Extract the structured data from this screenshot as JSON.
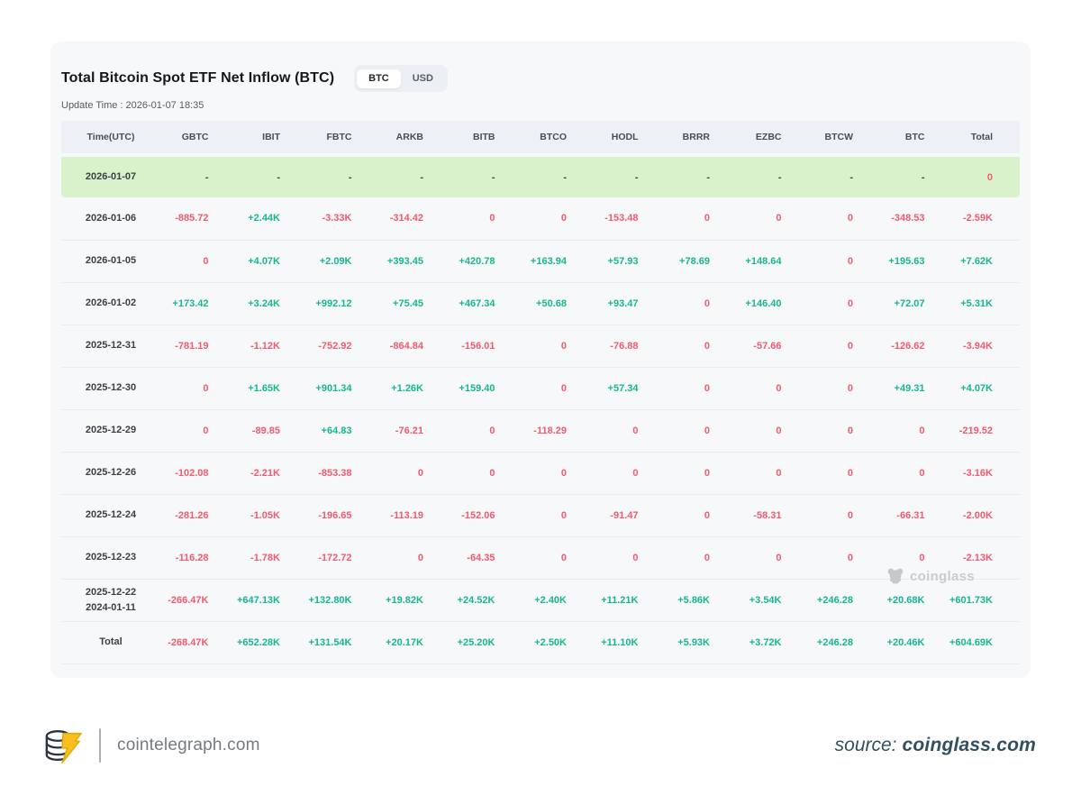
{
  "header": {
    "title": "Total Bitcoin Spot ETF Net Inflow (BTC)",
    "update_time": "Update Time : 2026-01-07 18:35",
    "toggle": {
      "options": [
        "BTC",
        "USD"
      ],
      "selected": "BTC"
    }
  },
  "table": {
    "columns": [
      "Time(UTC)",
      "GBTC",
      "IBIT",
      "FBTC",
      "ARKB",
      "BITB",
      "BTCO",
      "HODL",
      "BRRR",
      "EZBC",
      "BTCW",
      "BTC",
      "Total"
    ],
    "rows": [
      {
        "time": "2026-01-07",
        "highlight": true,
        "values": [
          {
            "t": "-",
            "c": "dash"
          },
          {
            "t": "-",
            "c": "dash"
          },
          {
            "t": "-",
            "c": "dash"
          },
          {
            "t": "-",
            "c": "dash"
          },
          {
            "t": "-",
            "c": "dash"
          },
          {
            "t": "-",
            "c": "dash"
          },
          {
            "t": "-",
            "c": "dash"
          },
          {
            "t": "-",
            "c": "dash"
          },
          {
            "t": "-",
            "c": "dash"
          },
          {
            "t": "-",
            "c": "dash"
          },
          {
            "t": "-",
            "c": "dash"
          },
          {
            "t": "0",
            "c": "neg"
          }
        ]
      },
      {
        "time": "2026-01-06",
        "highlight": false,
        "values": [
          {
            "t": "-885.72",
            "c": "neg"
          },
          {
            "t": "+2.44K",
            "c": "pos"
          },
          {
            "t": "-3.33K",
            "c": "neg"
          },
          {
            "t": "-314.42",
            "c": "neg"
          },
          {
            "t": "0",
            "c": "neg"
          },
          {
            "t": "0",
            "c": "neg"
          },
          {
            "t": "-153.48",
            "c": "neg"
          },
          {
            "t": "0",
            "c": "neg"
          },
          {
            "t": "0",
            "c": "neg"
          },
          {
            "t": "0",
            "c": "neg"
          },
          {
            "t": "-348.53",
            "c": "neg"
          },
          {
            "t": "-2.59K",
            "c": "neg"
          }
        ]
      },
      {
        "time": "2026-01-05",
        "highlight": false,
        "values": [
          {
            "t": "0",
            "c": "neg"
          },
          {
            "t": "+4.07K",
            "c": "pos"
          },
          {
            "t": "+2.09K",
            "c": "pos"
          },
          {
            "t": "+393.45",
            "c": "pos"
          },
          {
            "t": "+420.78",
            "c": "pos"
          },
          {
            "t": "+163.94",
            "c": "pos"
          },
          {
            "t": "+57.93",
            "c": "pos"
          },
          {
            "t": "+78.69",
            "c": "pos"
          },
          {
            "t": "+148.64",
            "c": "pos"
          },
          {
            "t": "0",
            "c": "neg"
          },
          {
            "t": "+195.63",
            "c": "pos"
          },
          {
            "t": "+7.62K",
            "c": "pos"
          }
        ]
      },
      {
        "time": "2026-01-02",
        "highlight": false,
        "values": [
          {
            "t": "+173.42",
            "c": "pos"
          },
          {
            "t": "+3.24K",
            "c": "pos"
          },
          {
            "t": "+992.12",
            "c": "pos"
          },
          {
            "t": "+75.45",
            "c": "pos"
          },
          {
            "t": "+467.34",
            "c": "pos"
          },
          {
            "t": "+50.68",
            "c": "pos"
          },
          {
            "t": "+93.47",
            "c": "pos"
          },
          {
            "t": "0",
            "c": "neg"
          },
          {
            "t": "+146.40",
            "c": "pos"
          },
          {
            "t": "0",
            "c": "neg"
          },
          {
            "t": "+72.07",
            "c": "pos"
          },
          {
            "t": "+5.31K",
            "c": "pos"
          }
        ]
      },
      {
        "time": "2025-12-31",
        "highlight": false,
        "values": [
          {
            "t": "-781.19",
            "c": "neg"
          },
          {
            "t": "-1.12K",
            "c": "neg"
          },
          {
            "t": "-752.92",
            "c": "neg"
          },
          {
            "t": "-864.84",
            "c": "neg"
          },
          {
            "t": "-156.01",
            "c": "neg"
          },
          {
            "t": "0",
            "c": "neg"
          },
          {
            "t": "-76.88",
            "c": "neg"
          },
          {
            "t": "0",
            "c": "neg"
          },
          {
            "t": "-57.66",
            "c": "neg"
          },
          {
            "t": "0",
            "c": "neg"
          },
          {
            "t": "-126.62",
            "c": "neg"
          },
          {
            "t": "-3.94K",
            "c": "neg"
          }
        ]
      },
      {
        "time": "2025-12-30",
        "highlight": false,
        "values": [
          {
            "t": "0",
            "c": "neg"
          },
          {
            "t": "+1.65K",
            "c": "pos"
          },
          {
            "t": "+901.34",
            "c": "pos"
          },
          {
            "t": "+1.26K",
            "c": "pos"
          },
          {
            "t": "+159.40",
            "c": "pos"
          },
          {
            "t": "0",
            "c": "neg"
          },
          {
            "t": "+57.34",
            "c": "pos"
          },
          {
            "t": "0",
            "c": "neg"
          },
          {
            "t": "0",
            "c": "neg"
          },
          {
            "t": "0",
            "c": "neg"
          },
          {
            "t": "+49.31",
            "c": "pos"
          },
          {
            "t": "+4.07K",
            "c": "pos"
          }
        ]
      },
      {
        "time": "2025-12-29",
        "highlight": false,
        "values": [
          {
            "t": "0",
            "c": "neg"
          },
          {
            "t": "-89.85",
            "c": "neg"
          },
          {
            "t": "+64.83",
            "c": "pos"
          },
          {
            "t": "-76.21",
            "c": "neg"
          },
          {
            "t": "0",
            "c": "neg"
          },
          {
            "t": "-118.29",
            "c": "neg"
          },
          {
            "t": "0",
            "c": "neg"
          },
          {
            "t": "0",
            "c": "neg"
          },
          {
            "t": "0",
            "c": "neg"
          },
          {
            "t": "0",
            "c": "neg"
          },
          {
            "t": "0",
            "c": "neg"
          },
          {
            "t": "-219.52",
            "c": "neg"
          }
        ]
      },
      {
        "time": "2025-12-26",
        "highlight": false,
        "values": [
          {
            "t": "-102.08",
            "c": "neg"
          },
          {
            "t": "-2.21K",
            "c": "neg"
          },
          {
            "t": "-853.38",
            "c": "neg"
          },
          {
            "t": "0",
            "c": "neg"
          },
          {
            "t": "0",
            "c": "neg"
          },
          {
            "t": "0",
            "c": "neg"
          },
          {
            "t": "0",
            "c": "neg"
          },
          {
            "t": "0",
            "c": "neg"
          },
          {
            "t": "0",
            "c": "neg"
          },
          {
            "t": "0",
            "c": "neg"
          },
          {
            "t": "0",
            "c": "neg"
          },
          {
            "t": "-3.16K",
            "c": "neg"
          }
        ]
      },
      {
        "time": "2025-12-24",
        "highlight": false,
        "values": [
          {
            "t": "-281.26",
            "c": "neg"
          },
          {
            "t": "-1.05K",
            "c": "neg"
          },
          {
            "t": "-196.65",
            "c": "neg"
          },
          {
            "t": "-113.19",
            "c": "neg"
          },
          {
            "t": "-152.06",
            "c": "neg"
          },
          {
            "t": "0",
            "c": "neg"
          },
          {
            "t": "-91.47",
            "c": "neg"
          },
          {
            "t": "0",
            "c": "neg"
          },
          {
            "t": "-58.31",
            "c": "neg"
          },
          {
            "t": "0",
            "c": "neg"
          },
          {
            "t": "-66.31",
            "c": "neg"
          },
          {
            "t": "-2.00K",
            "c": "neg"
          }
        ]
      },
      {
        "time": "2025-12-23",
        "highlight": false,
        "values": [
          {
            "t": "-116.28",
            "c": "neg"
          },
          {
            "t": "-1.78K",
            "c": "neg"
          },
          {
            "t": "-172.72",
            "c": "neg"
          },
          {
            "t": "0",
            "c": "neg"
          },
          {
            "t": "-64.35",
            "c": "neg"
          },
          {
            "t": "0",
            "c": "neg"
          },
          {
            "t": "0",
            "c": "neg"
          },
          {
            "t": "0",
            "c": "neg"
          },
          {
            "t": "0",
            "c": "neg"
          },
          {
            "t": "0",
            "c": "neg"
          },
          {
            "t": "0",
            "c": "neg"
          },
          {
            "t": "-2.13K",
            "c": "neg"
          }
        ]
      },
      {
        "time": "2025-12-22\n2024-01-11",
        "highlight": false,
        "values": [
          {
            "t": "-266.47K",
            "c": "neg"
          },
          {
            "t": "+647.13K",
            "c": "pos"
          },
          {
            "t": "+132.80K",
            "c": "pos"
          },
          {
            "t": "+19.82K",
            "c": "pos"
          },
          {
            "t": "+24.52K",
            "c": "pos"
          },
          {
            "t": "+2.40K",
            "c": "pos"
          },
          {
            "t": "+11.21K",
            "c": "pos"
          },
          {
            "t": "+5.86K",
            "c": "pos"
          },
          {
            "t": "+3.54K",
            "c": "pos"
          },
          {
            "t": "+246.28",
            "c": "pos"
          },
          {
            "t": "+20.68K",
            "c": "pos"
          },
          {
            "t": "+601.73K",
            "c": "pos"
          }
        ]
      },
      {
        "time": "Total",
        "highlight": false,
        "values": [
          {
            "t": "-268.47K",
            "c": "neg"
          },
          {
            "t": "+652.28K",
            "c": "pos"
          },
          {
            "t": "+131.54K",
            "c": "pos"
          },
          {
            "t": "+20.17K",
            "c": "pos"
          },
          {
            "t": "+25.20K",
            "c": "pos"
          },
          {
            "t": "+2.50K",
            "c": "pos"
          },
          {
            "t": "+11.10K",
            "c": "pos"
          },
          {
            "t": "+5.93K",
            "c": "pos"
          },
          {
            "t": "+3.72K",
            "c": "pos"
          },
          {
            "t": "+246.28",
            "c": "pos"
          },
          {
            "t": "+20.46K",
            "c": "pos"
          },
          {
            "t": "+604.69K",
            "c": "pos"
          }
        ]
      }
    ]
  },
  "watermark": {
    "label": "coinglass"
  },
  "footer": {
    "brand_domain": "cointelegraph.com",
    "source_prefix": "source:",
    "source_domain": "coinglass.com"
  },
  "colors": {
    "positive": "#17b690",
    "negative": "#f25a6e",
    "highlight_row": "#d9f2cc",
    "header_row": "#edf1f6",
    "card_background": "#f7f8fa"
  }
}
